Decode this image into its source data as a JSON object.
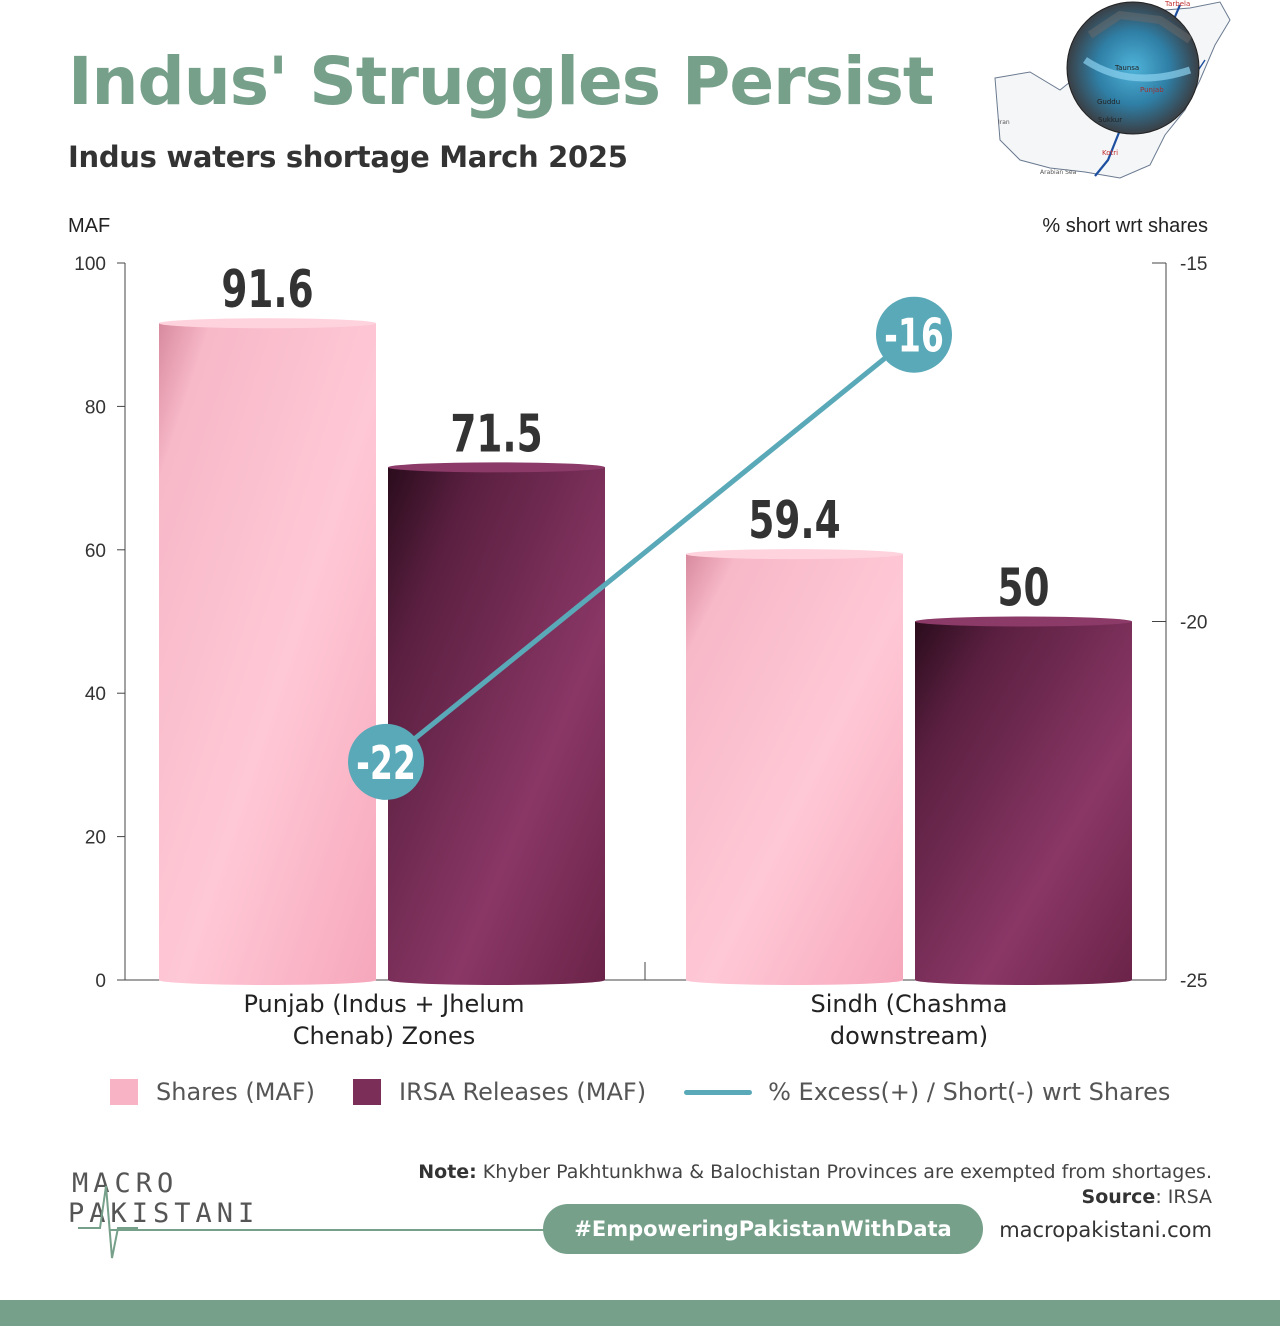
{
  "header": {
    "title": "Indus' Struggles Persist",
    "subtitle": "Indus waters shortage March 2025"
  },
  "map": {
    "labels": [
      "Tarbela",
      "Taunsa",
      "Punjab",
      "Guddu",
      "Sukkur",
      "Kotri",
      "Iran",
      "Arabian Sea"
    ]
  },
  "chart_data": {
    "type": "bar",
    "categories": [
      [
        "Punjab (Indus + Jhelum",
        "Chenab) Zones"
      ],
      [
        "Sindh (Chashma",
        "downstream)"
      ]
    ],
    "series": [
      {
        "name": "Shares (MAF)",
        "values": [
          91.6,
          59.4
        ],
        "color": "#f8b3c5",
        "data_labels": [
          "91.6",
          "59.4"
        ]
      },
      {
        "name": "IRSA Releases (MAF)",
        "values": [
          71.5,
          50
        ],
        "color": "#7a2e58",
        "data_labels": [
          "71.5",
          "50"
        ]
      }
    ],
    "line_series": {
      "name": "% Excess(+) / Short(-) wrt Shares",
      "values": [
        -22,
        -16
      ],
      "color": "#5aa9b8",
      "data_labels": [
        "-22",
        "-16"
      ]
    },
    "ylabel": "MAF",
    "ylim": [
      0,
      100
    ],
    "yticks": [
      "0",
      "20",
      "40",
      "60",
      "80",
      "100"
    ],
    "y2label": "% short wrt shares",
    "y2lim": [
      -25,
      -15
    ],
    "y2ticks": [
      "-25",
      "-20",
      "-15"
    ],
    "grid": false,
    "legend_position": "bottom"
  },
  "legend": [
    {
      "label": "Shares (MAF)",
      "color": "#f8b3c5"
    },
    {
      "label": "IRSA Releases (MAF)",
      "color": "#7a2e58"
    },
    {
      "label": "% Excess(+) / Short(-) wrt Shares",
      "color": "#5aa9b8"
    }
  ],
  "footer": {
    "logo_line1": "MACRO",
    "logo_line2": "PAKISTANI",
    "note_bold": "Note:",
    "note_text": " Khyber Pakhtunkhwa & Balochistan Provinces are exempted from shortages.",
    "source_bold": "Source",
    "source_text": ": IRSA",
    "hashtag": "#EmpoweringPakistanWithData",
    "website": "macropakistani.com"
  }
}
